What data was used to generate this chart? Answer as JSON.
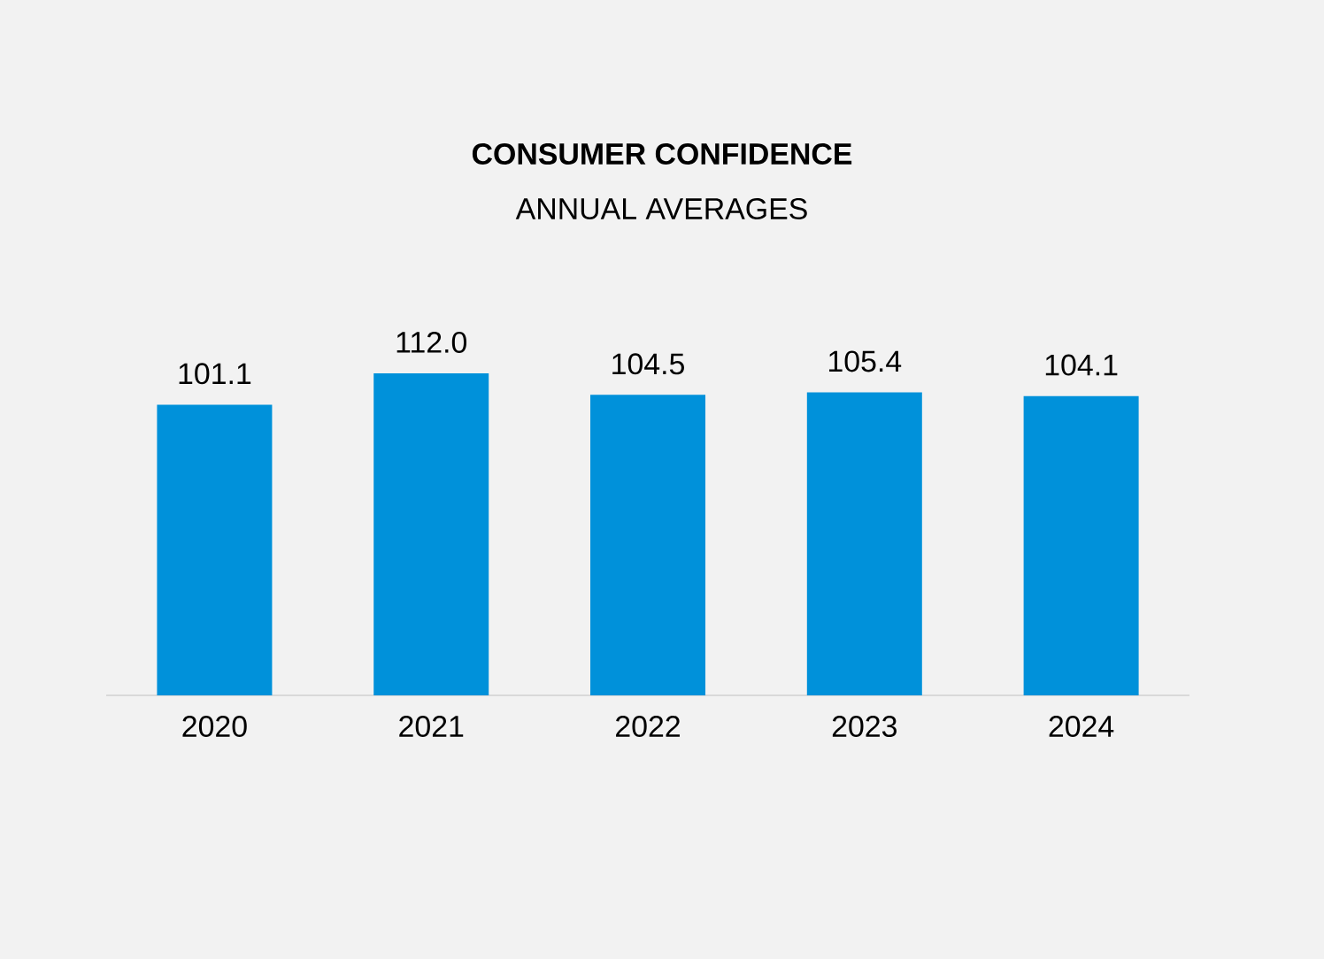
{
  "chart_data": {
    "type": "bar",
    "title": "CONSUMER CONFIDENCE",
    "subtitle": "ANNUAL AVERAGES",
    "categories": [
      "2020",
      "2021",
      "2022",
      "2023",
      "2024"
    ],
    "values": [
      101.1,
      112.0,
      104.5,
      105.4,
      104.1
    ],
    "value_labels": [
      "101.1",
      "112.0",
      "104.5",
      "105.4",
      "104.1"
    ],
    "color": "#0091da",
    "tick_labels": "x"
  }
}
